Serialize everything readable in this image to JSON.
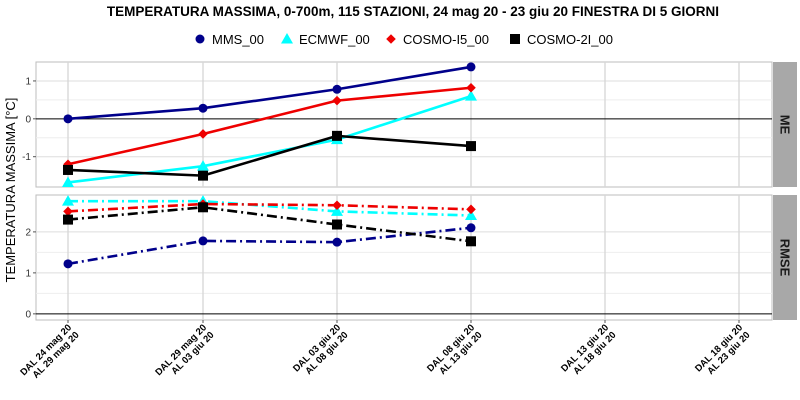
{
  "chart_data": {
    "type": "line",
    "title": "TEMPERATURA MASSIMA, 0-700m, 115 STAZIONI, 24 mag 20 - 23 giu 20 FINESTRA DI 5 GIORNI",
    "ylabel": "TEMPERATURA MASSIMA [°C]",
    "categories": [
      [
        "DAL 24 mag 20",
        "AL 29 mag 20"
      ],
      [
        "DAL 29 mag 20",
        "AL 03 giu 20"
      ],
      [
        "DAL 03 giu 20",
        "AL 08 giu 20"
      ],
      [
        "DAL 08 giu 20",
        "AL 13 giu 20"
      ],
      [
        "DAL 13 giu 20",
        "AL 18 giu 20"
      ],
      [
        "DAL 18 giu 20",
        "AL 23 giu 20"
      ]
    ],
    "legend": {
      "placement": "top",
      "entries": [
        {
          "name": "MMS_00",
          "color": "#00008B",
          "marker": "circle"
        },
        {
          "name": "ECMWF_00",
          "color": "#00FFFF",
          "marker": "triangle"
        },
        {
          "name": "COSMO-I5_00",
          "color": "#EE0000",
          "marker": "diamond"
        },
        {
          "name": "COSMO-2I_00",
          "color": "#000000",
          "marker": "square"
        }
      ]
    },
    "panels": [
      {
        "strip": "ME",
        "ylim": [
          -1.8,
          1.5
        ],
        "yticks": [
          -1,
          0,
          1
        ],
        "reference_line": 0,
        "line_style": "solid",
        "series": [
          {
            "name": "MMS_00",
            "values": [
              0.0,
              0.28,
              0.78,
              1.37,
              null,
              null
            ]
          },
          {
            "name": "ECMWF_00",
            "values": [
              -1.68,
              -1.25,
              -0.55,
              0.6,
              null,
              null
            ]
          },
          {
            "name": "COSMO-I5_00",
            "values": [
              -1.2,
              -0.4,
              0.48,
              0.82,
              null,
              null
            ]
          },
          {
            "name": "COSMO-2I_00",
            "values": [
              -1.35,
              -1.5,
              -0.45,
              -0.72,
              null,
              null
            ]
          }
        ]
      },
      {
        "strip": "RMSE",
        "ylim": [
          -0.15,
          2.9
        ],
        "yticks": [
          0,
          1,
          2
        ],
        "reference_line": 0,
        "line_style": "dashdot",
        "series": [
          {
            "name": "MMS_00",
            "values": [
              1.22,
              1.78,
              1.75,
              2.1,
              null,
              null
            ]
          },
          {
            "name": "ECMWF_00",
            "values": [
              2.75,
              2.75,
              2.5,
              2.4,
              null,
              null
            ]
          },
          {
            "name": "COSMO-I5_00",
            "values": [
              2.5,
              2.68,
              2.65,
              2.55,
              null,
              null
            ]
          },
          {
            "name": "COSMO-2I_00",
            "values": [
              2.3,
              2.6,
              2.18,
              1.77,
              null,
              null
            ]
          }
        ]
      }
    ]
  }
}
